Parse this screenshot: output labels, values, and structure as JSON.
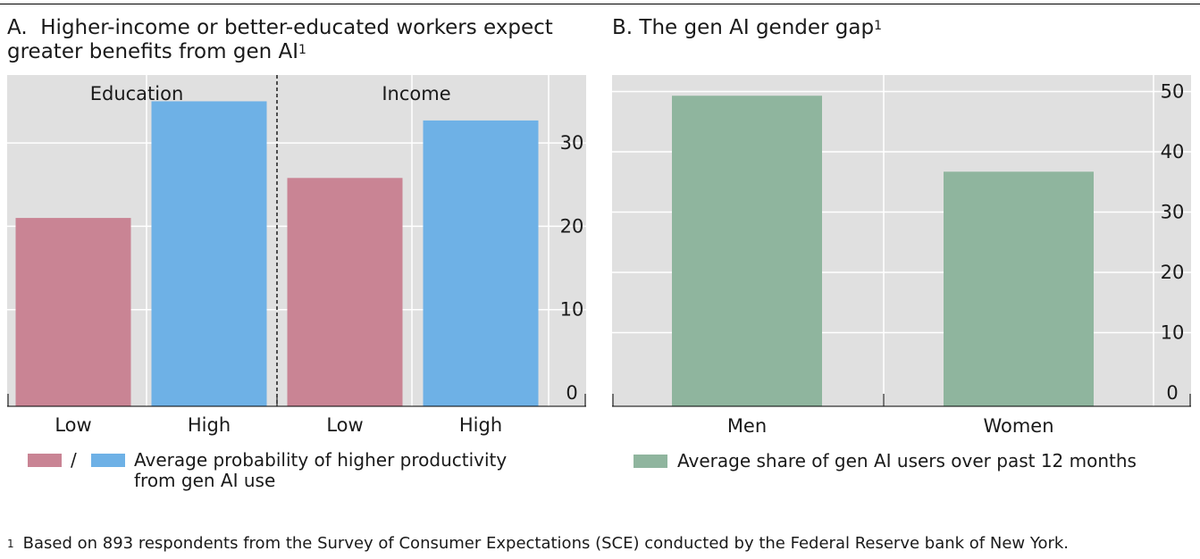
{
  "panelA": {
    "label": "A.",
    "title": "Higher-income or better-educated workers expect greater benefits from gen AI",
    "footnote_mark": "1",
    "group_labels": [
      "Education",
      "Income"
    ],
    "legend_separator": "/",
    "legend_text": "Average probability of higher productivity from gen AI use"
  },
  "panelB": {
    "label": "B.",
    "title": "The gen AI gender gap",
    "footnote_mark": "1",
    "legend_text": "Average share of gen AI users over past 12 months"
  },
  "footnote": {
    "mark": "1",
    "text": "Based on 893 respondents from the Survey of Consumer Expectations (SCE) conducted by the Federal Reserve bank of New York."
  },
  "colors": {
    "low": "#C98494",
    "high": "#6EB1E6",
    "green": "#8FB59E",
    "background": "#E0E0E0",
    "grid": "#FFFFFF"
  },
  "chart_data": [
    {
      "type": "bar",
      "categories": [
        "Low",
        "High",
        "Low",
        "High"
      ],
      "groups": [
        "Education",
        "Education",
        "Income",
        "Income"
      ],
      "values": [
        21,
        35,
        25.8,
        32.7
      ],
      "yticks": [
        0,
        10,
        20,
        30
      ],
      "ylim": [
        0,
        37.5
      ],
      "y_axis_position": "right",
      "grid": true
    },
    {
      "type": "bar",
      "categories": [
        "Men",
        "Women"
      ],
      "values": [
        49.3,
        36.7
      ],
      "yticks": [
        0,
        10,
        20,
        30,
        40,
        50
      ],
      "ylim": [
        0,
        52
      ],
      "y_axis_position": "right",
      "grid": true
    }
  ]
}
